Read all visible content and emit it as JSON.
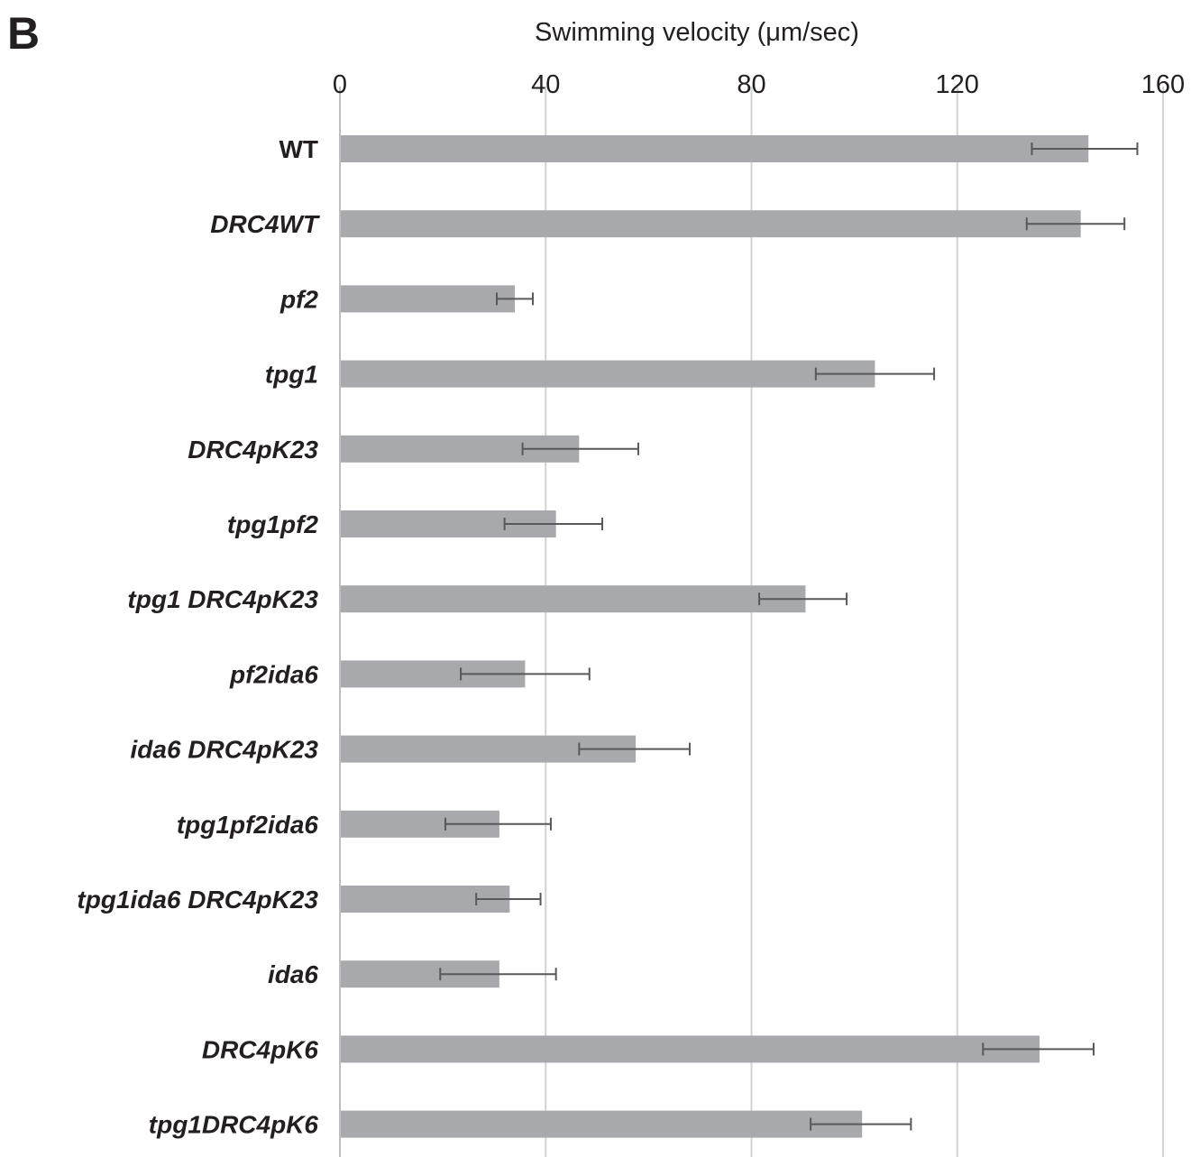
{
  "panel_label": "B",
  "chart_data": {
    "type": "bar",
    "orientation": "horizontal",
    "title": "",
    "xlabel": "Swimming velocity (μm/sec)",
    "ylabel": "",
    "xlim": [
      0,
      160
    ],
    "xticks": [
      0,
      40,
      80,
      120,
      160
    ],
    "x_axis_position": "top",
    "grid": "vertical",
    "categories": [
      "WT",
      "DRC4WT",
      "pf2",
      "tpg1",
      "DRC4pK23",
      "tpg1pf2",
      "tpg1 DRC4pK23",
      "pf2ida6",
      "ida6 DRC4pK23",
      "tpg1pf2ida6",
      "tpg1ida6 DRC4pK23",
      "ida6",
      "DRC4pK6",
      "tpg1DRC4pK6"
    ],
    "category_italic": [
      false,
      true,
      true,
      true,
      true,
      true,
      true,
      true,
      true,
      true,
      true,
      true,
      true,
      true
    ],
    "values": [
      145.5,
      144,
      34,
      104,
      46.5,
      42,
      90.5,
      36,
      57.5,
      31,
      33,
      31,
      136,
      101.5
    ],
    "error_low": [
      134.5,
      133.5,
      30.5,
      92.5,
      35.5,
      32,
      81.5,
      23.5,
      46.5,
      20.5,
      26.5,
      19.5,
      125,
      91.5
    ],
    "error_high": [
      155,
      152.5,
      37.5,
      115.5,
      58,
      51,
      98.5,
      48.5,
      68,
      41,
      39,
      42,
      146.5,
      111
    ],
    "colors": {
      "bar": "#a7a9ac",
      "grid": "#d1d3d4",
      "axis": "#bcbec0",
      "error_bar": "#58595b",
      "text": "#231f20"
    }
  }
}
